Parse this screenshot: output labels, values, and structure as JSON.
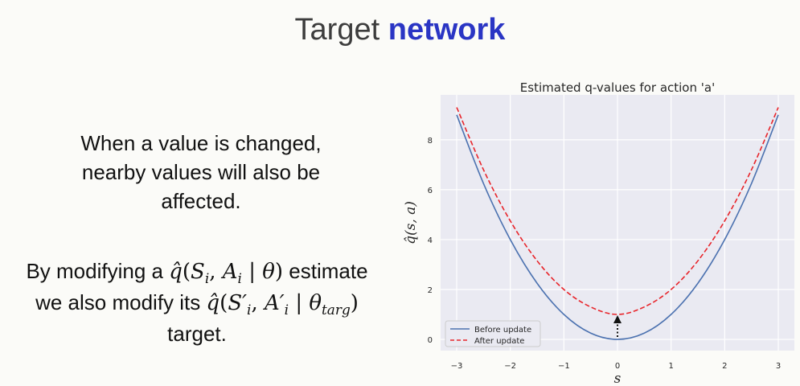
{
  "slide": {
    "title_main": "Target",
    "title_accent": "network",
    "paragraph1": "When a value is changed, nearby values will also be affected.",
    "paragraph2": {
      "line1_prefix": "By modifying a",
      "line1_suffix": "estimate",
      "line2_prefix": "we also modify its",
      "line3": "target."
    },
    "colors": {
      "accent": "#2a35c4",
      "text": "#111111"
    }
  },
  "chart_data": {
    "type": "line",
    "title": "Estimated q-values for action 'a'",
    "xlabel": "s",
    "ylabel": "q̂(s, a)",
    "xlim": [
      -3.3,
      3.3
    ],
    "ylim": [
      -0.45,
      9.8
    ],
    "xticks": [
      -3,
      -2,
      -1,
      0,
      1,
      2,
      3
    ],
    "yticks": [
      0,
      2,
      4,
      6,
      8
    ],
    "grid": true,
    "legend_position": "lower-left",
    "series": [
      {
        "name": "Before update",
        "color": "#4c72b0",
        "style": "solid",
        "x": [
          -3,
          -2.5,
          -2,
          -1.5,
          -1,
          -0.5,
          0,
          0.5,
          1,
          1.5,
          2,
          2.5,
          3
        ],
        "y": [
          9,
          6.25,
          4,
          2.25,
          1,
          0.25,
          0,
          0.25,
          1,
          2.25,
          4,
          6.25,
          9
        ]
      },
      {
        "name": "After update",
        "color": "#e8242a",
        "style": "dashed",
        "x": [
          -3,
          -2.5,
          -2,
          -1.5,
          -1,
          -0.5,
          0,
          0.5,
          1,
          1.5,
          2,
          2.5,
          3
        ],
        "y": [
          9.3,
          6.8,
          4.75,
          3.15,
          2.0,
          1.3,
          1.0,
          1.3,
          2.0,
          3.15,
          4.75,
          6.8,
          9.3
        ]
      }
    ],
    "annotation": {
      "type": "arrow",
      "x": 0,
      "y_from": 0,
      "y_to": 1,
      "style": "dotted"
    }
  }
}
